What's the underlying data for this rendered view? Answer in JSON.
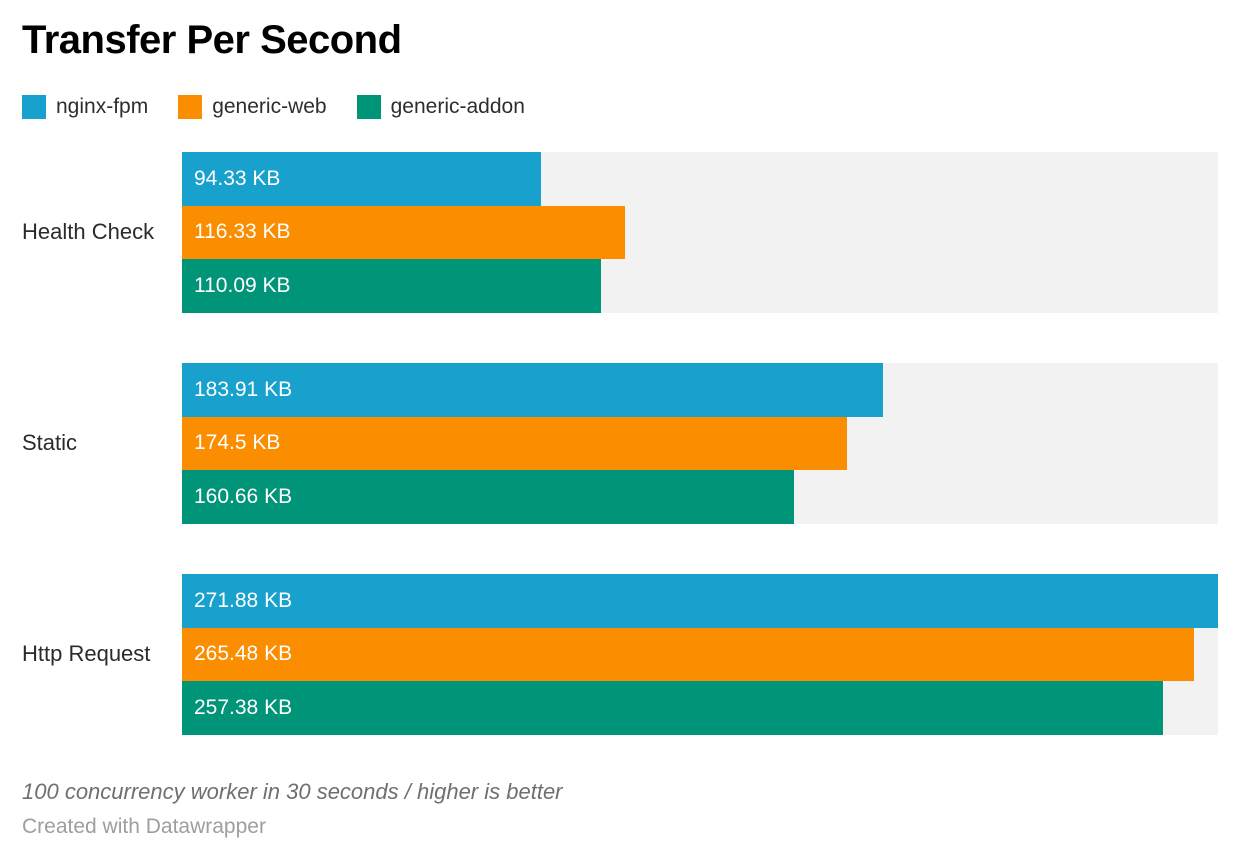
{
  "chart_data": {
    "type": "bar",
    "orientation": "horizontal",
    "title": "Transfer Per Second",
    "categories": [
      "Health Check",
      "Static",
      "Http Request"
    ],
    "series": [
      {
        "name": "nginx-fpm",
        "color": "#18a1cd",
        "values": [
          94.33,
          183.91,
          271.88
        ],
        "labels": [
          "94.33 KB",
          "183.91 KB",
          "271.88 KB"
        ]
      },
      {
        "name": "generic-web",
        "color": "#fa8d00",
        "values": [
          116.33,
          174.5,
          265.48
        ],
        "labels": [
          "116.33 KB",
          "174.5 KB",
          "265.48 KB"
        ]
      },
      {
        "name": "generic-addon",
        "color": "#009478",
        "values": [
          110.09,
          160.66,
          257.38
        ],
        "labels": [
          "110.09 KB",
          "160.66 KB",
          "257.38 KB"
        ]
      }
    ],
    "unit": "KB",
    "xlabel": "",
    "ylabel": "",
    "xlim": [
      0,
      271.88
    ],
    "grid": false,
    "value_labels_inside_bars": true,
    "legend_position": "top",
    "track_color": "#f2f2f2",
    "background_color": "#ffffff"
  },
  "footer": {
    "note": "100 concurrency worker in 30 seconds / higher is better",
    "attribution": "Created with Datawrapper"
  }
}
